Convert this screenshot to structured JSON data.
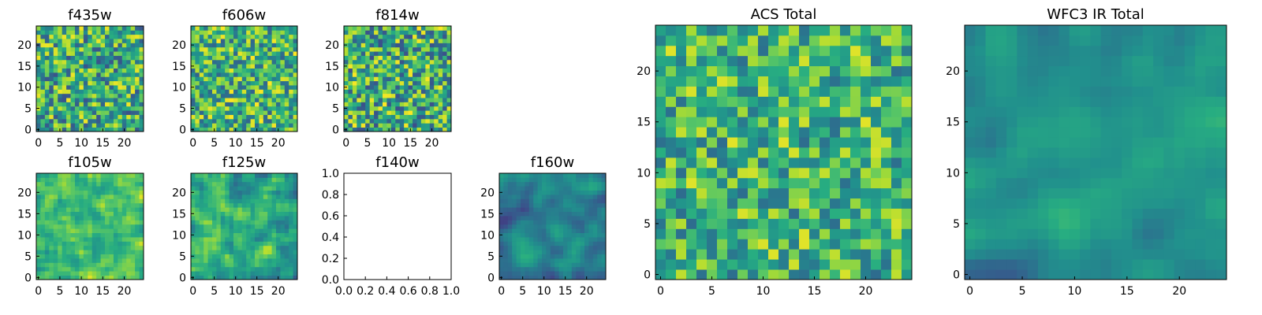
{
  "chart_data": [
    {
      "type": "heatmap",
      "title": "f435w",
      "xticks": [
        "0",
        "5",
        "10",
        "15",
        "20"
      ],
      "yticks": [
        "0",
        "5",
        "10",
        "15",
        "20"
      ],
      "xlim": [
        -0.5,
        24.5
      ],
      "ylim": [
        -0.5,
        24.5
      ],
      "colormap": "viridis",
      "data_bias": 0.62,
      "data_noise": 0.36,
      "smoothing": 0,
      "seed": 11
    },
    {
      "type": "heatmap",
      "title": "f606w",
      "xticks": [
        "0",
        "5",
        "10",
        "15",
        "20"
      ],
      "yticks": [
        "0",
        "5",
        "10",
        "15",
        "20"
      ],
      "xlim": [
        -0.5,
        24.5
      ],
      "ylim": [
        -0.5,
        24.5
      ],
      "colormap": "viridis",
      "data_bias": 0.66,
      "data_noise": 0.34,
      "smoothing": 0,
      "seed": 23
    },
    {
      "type": "heatmap",
      "title": "f814w",
      "xticks": [
        "0",
        "5",
        "10",
        "15",
        "20"
      ],
      "yticks": [
        "0",
        "5",
        "10",
        "15",
        "20"
      ],
      "xlim": [
        -0.5,
        24.5
      ],
      "ylim": [
        -0.5,
        24.5
      ],
      "colormap": "viridis",
      "data_bias": 0.62,
      "data_noise": 0.38,
      "smoothing": 0,
      "seed": 37
    },
    {
      "type": "heatmap",
      "title": "f105w",
      "xticks": [
        "0",
        "5",
        "10",
        "15",
        "20"
      ],
      "yticks": [
        "0",
        "5",
        "10",
        "15",
        "20"
      ],
      "xlim": [
        -0.5,
        24.5
      ],
      "ylim": [
        -0.5,
        24.5
      ],
      "colormap": "viridis",
      "data_bias": 0.72,
      "data_noise": 0.24,
      "smoothing": 1,
      "seed": 41
    },
    {
      "type": "heatmap",
      "title": "f125w",
      "xticks": [
        "0",
        "5",
        "10",
        "15",
        "20"
      ],
      "yticks": [
        "0",
        "5",
        "10",
        "15",
        "20"
      ],
      "xlim": [
        -0.5,
        24.5
      ],
      "ylim": [
        -0.5,
        24.5
      ],
      "colormap": "viridis",
      "data_bias": 0.6,
      "data_noise": 0.3,
      "smoothing": 1,
      "seed": 53
    },
    {
      "type": "empty",
      "title": "f140w",
      "xticks": [
        "0.0",
        "0.2",
        "0.4",
        "0.6",
        "0.8",
        "1.0"
      ],
      "yticks": [
        "0.0",
        "0.2",
        "0.4",
        "0.6",
        "0.8",
        "1.0"
      ],
      "xlim": [
        0,
        1
      ],
      "ylim": [
        0,
        1
      ]
    },
    {
      "type": "heatmap",
      "title": "f160w",
      "xticks": [
        "0",
        "5",
        "10",
        "15",
        "20"
      ],
      "yticks": [
        "0",
        "5",
        "10",
        "15",
        "20"
      ],
      "xlim": [
        -0.5,
        24.5
      ],
      "ylim": [
        -0.5,
        24.5
      ],
      "colormap": "viridis",
      "data_bias": 0.42,
      "data_noise": 0.22,
      "smoothing": 2,
      "seed": 67
    },
    {
      "type": "heatmap",
      "title": "ACS Total",
      "xticks": [
        "0",
        "5",
        "10",
        "15",
        "20"
      ],
      "yticks": [
        "0",
        "5",
        "10",
        "15",
        "20"
      ],
      "xlim": [
        -0.5,
        24.5
      ],
      "ylim": [
        -0.5,
        24.5
      ],
      "colormap": "viridis",
      "data_bias": 0.66,
      "data_noise": 0.3,
      "smoothing": 0,
      "seed": 79
    },
    {
      "type": "heatmap",
      "title": "WFC3 IR Total",
      "xticks": [
        "0",
        "5",
        "10",
        "15",
        "20"
      ],
      "yticks": [
        "0",
        "5",
        "10",
        "15",
        "20"
      ],
      "xlim": [
        -0.5,
        24.5
      ],
      "ylim": [
        -0.5,
        24.5
      ],
      "colormap": "viridis",
      "data_bias": 0.48,
      "data_noise": 0.18,
      "smoothing": 2,
      "seed": 97
    }
  ]
}
